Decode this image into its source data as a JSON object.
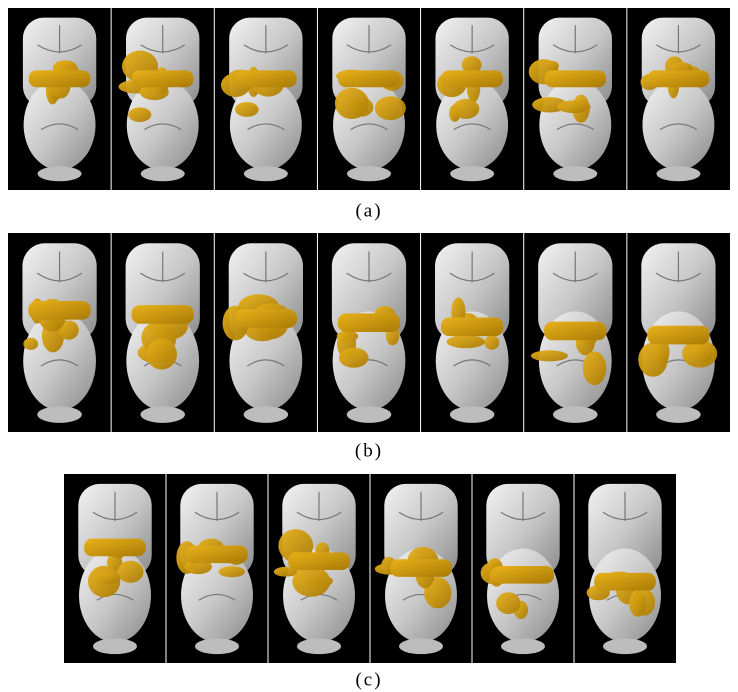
{
  "rows": [
    {
      "caption": "(a)"
    },
    {
      "caption": "(b)"
    },
    {
      "caption": "(c)"
    }
  ]
}
